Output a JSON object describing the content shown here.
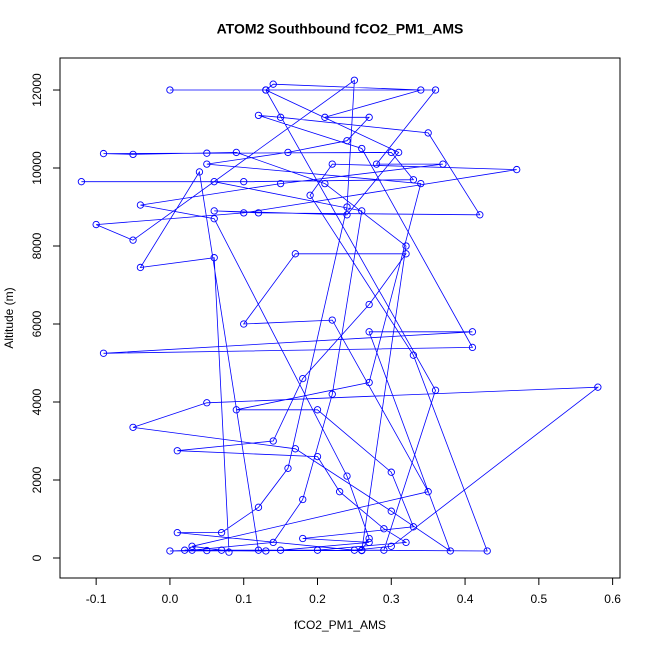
{
  "chart_data": {
    "type": "line",
    "title": "ATOM2 Southbound fCO2_PM1_AMS",
    "xlabel": "fCO2_PM1_AMS",
    "ylabel": "Altitude (m)",
    "color": "#0000ff",
    "markers": true,
    "xlim": [
      -0.149,
      0.61
    ],
    "ylim": [
      -513,
      12821
    ],
    "xticks": [
      -0.1,
      {
        "value": 0,
        "label": "0.0"
      },
      0.1,
      0.2,
      0.3,
      0.4,
      0.5,
      0.6
    ],
    "yticks": [
      0,
      2000,
      4000,
      6000,
      8000,
      10000,
      12000
    ],
    "x": [
      0.13,
      0.05,
      0.02,
      0.26,
      0.32,
      0.21,
      0.09,
      -0.05,
      -0.09,
      0.05,
      0.3,
      0.33,
      0.1,
      -0.12,
      0.06,
      0.26,
      0.22,
      0.18,
      0.14,
      0.03,
      0.0,
      0.29,
      0.36,
      0.13,
      0.0,
      0.36,
      0.28,
      0.37,
      0.15,
      -0.04,
      0.06,
      0.24,
      0.27,
      0.26,
      0.43,
      0.33,
      0.19,
      0.22,
      0.47,
      0.1,
      -0.1,
      -0.05,
      0.25,
      0.24,
      0.16,
      0.12,
      0.07,
      0.01,
      0.25,
      0.3,
      0.58,
      0.05,
      -0.05,
      0.17,
      0.3,
      0.38,
      0.27,
      0.41,
      -0.09,
      0.41,
      0.26,
      0.12,
      0.15,
      0.35,
      0.42,
      0.12,
      0.06,
      0.24,
      0.31,
      0.13,
      0.14,
      0.34,
      0.21,
      0.27,
      0.24,
      0.16,
      0.05,
      0.34,
      0.27,
      0.09,
      0.2,
      0.3,
      0.33,
      0.18,
      0.27,
      0.15,
      0.07,
      0.03,
      0.35,
      0.22,
      0.1,
      0.17,
      0.32,
      0.27,
      0.18,
      0.14,
      0.01,
      0.2,
      0.23,
      0.29,
      0.32,
      0.2,
      0.12,
      0.04,
      -0.04,
      0.06,
      0.08
    ],
    "values": [
      180,
      190,
      200,
      190,
      8000,
      9600,
      10400,
      10350,
      10370,
      10380,
      10400,
      9700,
      9650,
      9650,
      9650,
      8900,
      4200,
      1500,
      400,
      200,
      180,
      200,
      4300,
      12000,
      12000,
      12000,
      10100,
      10100,
      9600,
      9050,
      8700,
      2100,
      500,
      200,
      180,
      5200,
      9300,
      10100,
      9960,
      8850,
      8550,
      8150,
      12250,
      9000,
      2300,
      1300,
      650,
      650,
      200,
      300,
      4380,
      3980,
      3350,
      2800,
      1200,
      180,
      5800,
      5800,
      5250,
      5400,
      10500,
      11350,
      11300,
      10900,
      8800,
      8850,
      8900,
      8800,
      10400,
      12000,
      12150,
      12000,
      11300,
      11300,
      10700,
      10400,
      10100,
      9600,
      4500,
      3800,
      3800,
      2200,
      800,
      500,
      400,
      200,
      200,
      300,
      1700,
      6100,
      6000,
      7800,
      7800,
      6500,
      4600,
      3000,
      2750,
      2600,
      1700,
      750,
      400,
      200,
      200,
      9900,
      7450,
      7700,
      150
    ]
  }
}
